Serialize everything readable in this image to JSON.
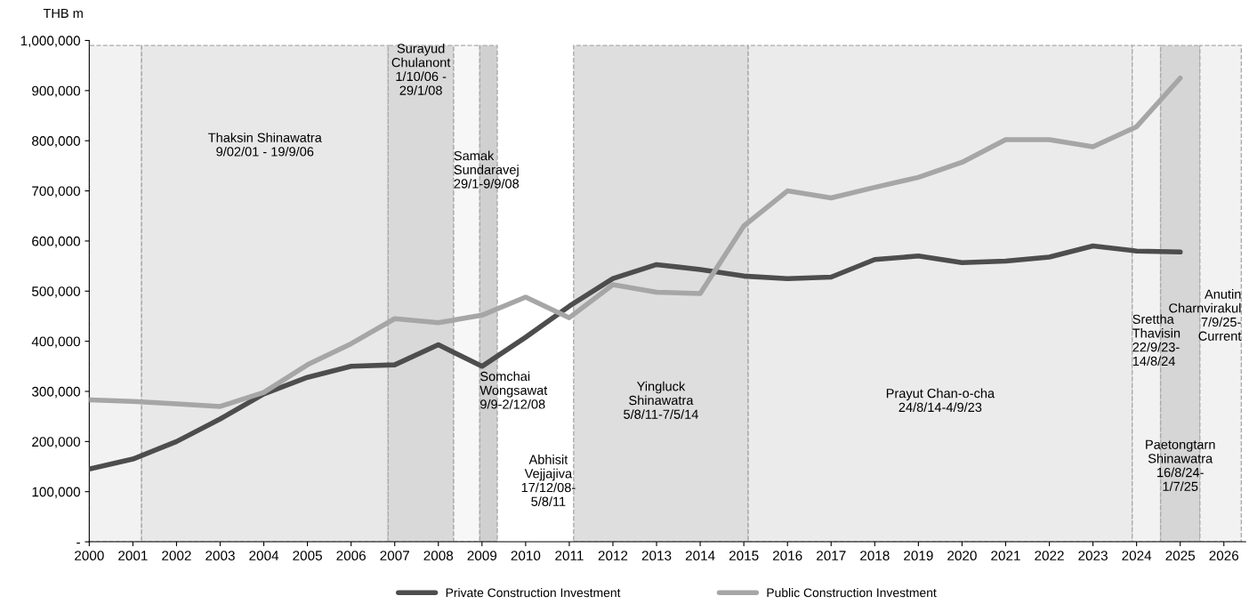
{
  "chart_data": {
    "type": "line",
    "ylabel": "THB m",
    "x": [
      2000,
      2001,
      2002,
      2003,
      2004,
      2005,
      2006,
      2007,
      2008,
      2009,
      2010,
      2011,
      2012,
      2013,
      2014,
      2015,
      2016,
      2017,
      2018,
      2019,
      2020,
      2021,
      2022,
      2023,
      2024,
      2025
    ],
    "series": [
      {
        "name": "Private Construction Investment",
        "color": "#4d4d4d",
        "values": [
          145000,
          165000,
          200000,
          245000,
          295000,
          328000,
          350000,
          353000,
          393000,
          350000,
          408000,
          470000,
          525000,
          553000,
          543000,
          530000,
          525000,
          528000,
          563000,
          570000,
          557000,
          560000,
          568000,
          590000,
          580000,
          578000
        ]
      },
      {
        "name": "Public Construction Investment",
        "color": "#a6a6a6",
        "values": [
          283000,
          280000,
          275000,
          270000,
          298000,
          353000,
          395000,
          445000,
          437000,
          452000,
          488000,
          447000,
          513000,
          498000,
          495000,
          630000,
          700000,
          686000,
          707000,
          727000,
          757000,
          802000,
          802000,
          788000,
          828000,
          925000
        ]
      }
    ],
    "xlim": [
      2000,
      2026.5
    ],
    "xticks": [
      2000,
      2001,
      2002,
      2003,
      2004,
      2005,
      2006,
      2007,
      2008,
      2009,
      2010,
      2011,
      2012,
      2013,
      2014,
      2015,
      2016,
      2017,
      2018,
      2019,
      2020,
      2021,
      2022,
      2023,
      2024,
      2025,
      2026
    ],
    "ylim": [
      0,
      1000000
    ],
    "yticks": [
      {
        "value": 0,
        "label": "-"
      },
      {
        "value": 100000,
        "label": "100,000"
      },
      {
        "value": 200000,
        "label": "200,000"
      },
      {
        "value": 300000,
        "label": "300,000"
      },
      {
        "value": 400000,
        "label": "400,000"
      },
      {
        "value": 500000,
        "label": "500,000"
      },
      {
        "value": 600000,
        "label": "600,000"
      },
      {
        "value": 700000,
        "label": "700,000"
      },
      {
        "value": 800000,
        "label": "800,000"
      },
      {
        "value": 900000,
        "label": "900,000"
      },
      {
        "value": 1000000,
        "label": "1,000,000"
      }
    ],
    "bands": [
      {
        "axis": "x",
        "from": 2000,
        "to": 2001.2,
        "color": "#f2f2f2"
      },
      {
        "axis": "x",
        "from": 2001.2,
        "to": 2006.85,
        "label": "Thaksin Shinawatra\n9/02/01 - 19/9/06",
        "color": "#e8e8e8"
      },
      {
        "axis": "x",
        "from": 2006.85,
        "to": 2008.35,
        "label": "Surayud\nChulanont\n1/10/06 -\n29/1/08",
        "color": "#d9d9d9"
      },
      {
        "axis": "x",
        "from": 2008.35,
        "to": 2008.95,
        "label": "Samak\nSundaravej\n29/1-9/9/08",
        "color": "#f7f7f7"
      },
      {
        "axis": "x",
        "from": 2008.95,
        "to": 2009.35,
        "label": "Somchai\nWongsawat\n9/9-2/12/08",
        "color": "#d0d0d0"
      },
      {
        "axis": "x",
        "from": 2011.1,
        "to": 2015.1,
        "label": "Yingluck\nShinawatra\n5/8/11-7/5/14",
        "color": "#dedede"
      },
      {
        "axis": "x",
        "from": 2015.1,
        "to": 2023.9,
        "label": "Prayut Chan-o-cha\n24/8/14-4/9/23",
        "color": "#ebebeb"
      },
      {
        "axis": "x",
        "from": 2023.9,
        "to": 2024.55,
        "label": "Srettha\nThavisin\n22/9/23-\n14/8/24",
        "color": "#f2f2f2"
      },
      {
        "axis": "x",
        "from": 2024.55,
        "to": 2025.45,
        "label": "Paetongtarn\nShinawatra\n16/8/24-\n1/7/25",
        "color": "#d6d6d6"
      },
      {
        "axis": "x",
        "from": 2025.45,
        "to": 2026.4,
        "label": "Anutin\nCharnvirakul\n7/9/25-\nCurrent",
        "color": "#f2f2f2"
      }
    ],
    "annotations": [
      "Abhisit\nVejjajiva\n17/12/08-\n5/8/11"
    ],
    "legend": "bottom",
    "grid": false,
    "marker": "none",
    "line_style": "solid"
  }
}
